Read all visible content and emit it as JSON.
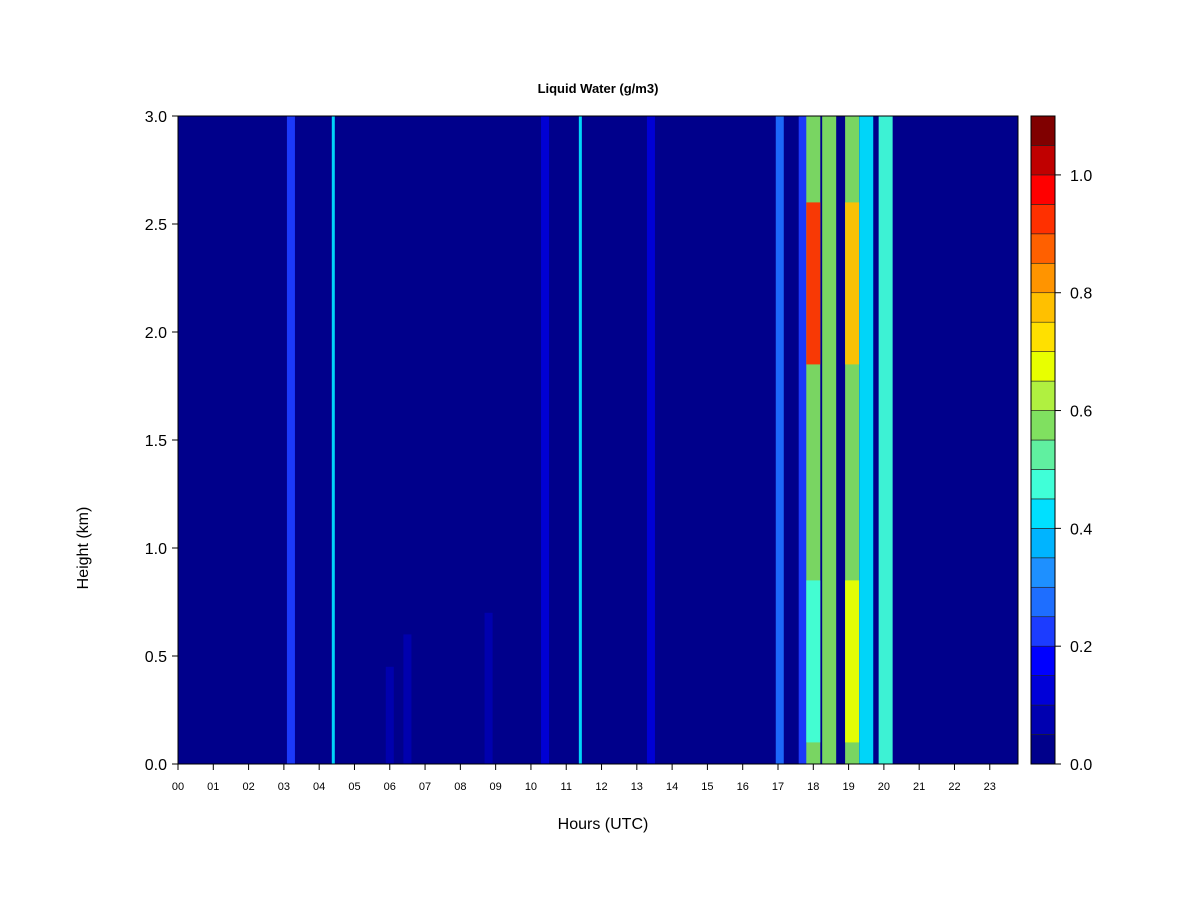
{
  "chart_data": {
    "type": "heatmap",
    "title": "Liquid Water (g/m3)",
    "xlabel": "Hours (UTC)",
    "ylabel": "Height (km)",
    "xlim": [
      0,
      23.8
    ],
    "ylim": [
      0,
      3.0
    ],
    "x_ticks": [
      "00",
      "01",
      "02",
      "03",
      "04",
      "05",
      "06",
      "07",
      "08",
      "09",
      "10",
      "11",
      "12",
      "13",
      "14",
      "15",
      "16",
      "17",
      "18",
      "19",
      "20",
      "21",
      "22",
      "23"
    ],
    "y_ticks": [
      "0.0",
      "0.5",
      "1.0",
      "1.5",
      "2.0",
      "2.5",
      "3.0"
    ],
    "background_value": 0.0,
    "colorbar": {
      "min": 0.0,
      "max": 1.1,
      "step": 0.05,
      "tick_labels": [
        "0.0",
        "0.2",
        "0.4",
        "0.6",
        "0.8",
        "1.0"
      ],
      "tick_values": [
        0.0,
        0.2,
        0.4,
        0.6,
        0.8,
        1.0
      ],
      "colors": [
        "#00008b",
        "#0000b0",
        "#0000d8",
        "#0000ff",
        "#1c3cff",
        "#1e6eff",
        "#1e90ff",
        "#00b4ff",
        "#00e0ff",
        "#40ffd8",
        "#60f0a0",
        "#80e060",
        "#b0f040",
        "#e8ff00",
        "#ffe000",
        "#ffc000",
        "#ff9400",
        "#ff6000",
        "#ff3000",
        "#ff0000",
        "#c00000",
        "#800000"
      ]
    },
    "features": [
      {
        "hour": 3.2,
        "h_from": 0.0,
        "h_to": 3.0,
        "value": 0.22
      },
      {
        "hour": 4.4,
        "h_from": 0.0,
        "h_to": 3.0,
        "value": 0.4
      },
      {
        "hour": 11.4,
        "h_from": 0.0,
        "h_to": 3.0,
        "value": 0.42
      },
      {
        "hour": 17.05,
        "h_from": 0.0,
        "h_to": 3.0,
        "value": 0.25
      },
      {
        "hour": 6.0,
        "h_from": 0.0,
        "h_to": 0.45,
        "value": 0.06
      },
      {
        "hour": 6.5,
        "h_from": 0.0,
        "h_to": 0.6,
        "value": 0.06
      },
      {
        "hour": 8.8,
        "h_from": 0.0,
        "h_to": 0.7,
        "value": 0.08
      },
      {
        "hour": 10.4,
        "h_from": 0.0,
        "h_to": 3.0,
        "value": 0.1
      },
      {
        "hour": 13.4,
        "h_from": 0.0,
        "h_to": 3.0,
        "value": 0.12
      },
      {
        "hour": 17.7,
        "h_from": 0.0,
        "h_to": 3.0,
        "value": 0.2
      },
      {
        "hour": 18.0,
        "h_from": 0.0,
        "h_to": 3.0,
        "value": 0.55
      },
      {
        "hour": 18.0,
        "h_from": 1.85,
        "h_to": 2.6,
        "value": 0.92
      },
      {
        "hour": 18.0,
        "h_from": 0.1,
        "h_to": 0.85,
        "value": 0.45
      },
      {
        "hour": 18.45,
        "h_from": 0.0,
        "h_to": 3.0,
        "value": 0.55
      },
      {
        "hour": 19.1,
        "h_from": 0.0,
        "h_to": 3.0,
        "value": 0.6
      },
      {
        "hour": 19.1,
        "h_from": 1.85,
        "h_to": 2.6,
        "value": 0.78
      },
      {
        "hour": 19.1,
        "h_from": 0.1,
        "h_to": 0.85,
        "value": 0.65
      },
      {
        "hour": 19.5,
        "h_from": 0.0,
        "h_to": 3.0,
        "value": 0.4
      },
      {
        "hour": 20.05,
        "h_from": 0.0,
        "h_to": 3.0,
        "value": 0.48
      }
    ]
  }
}
